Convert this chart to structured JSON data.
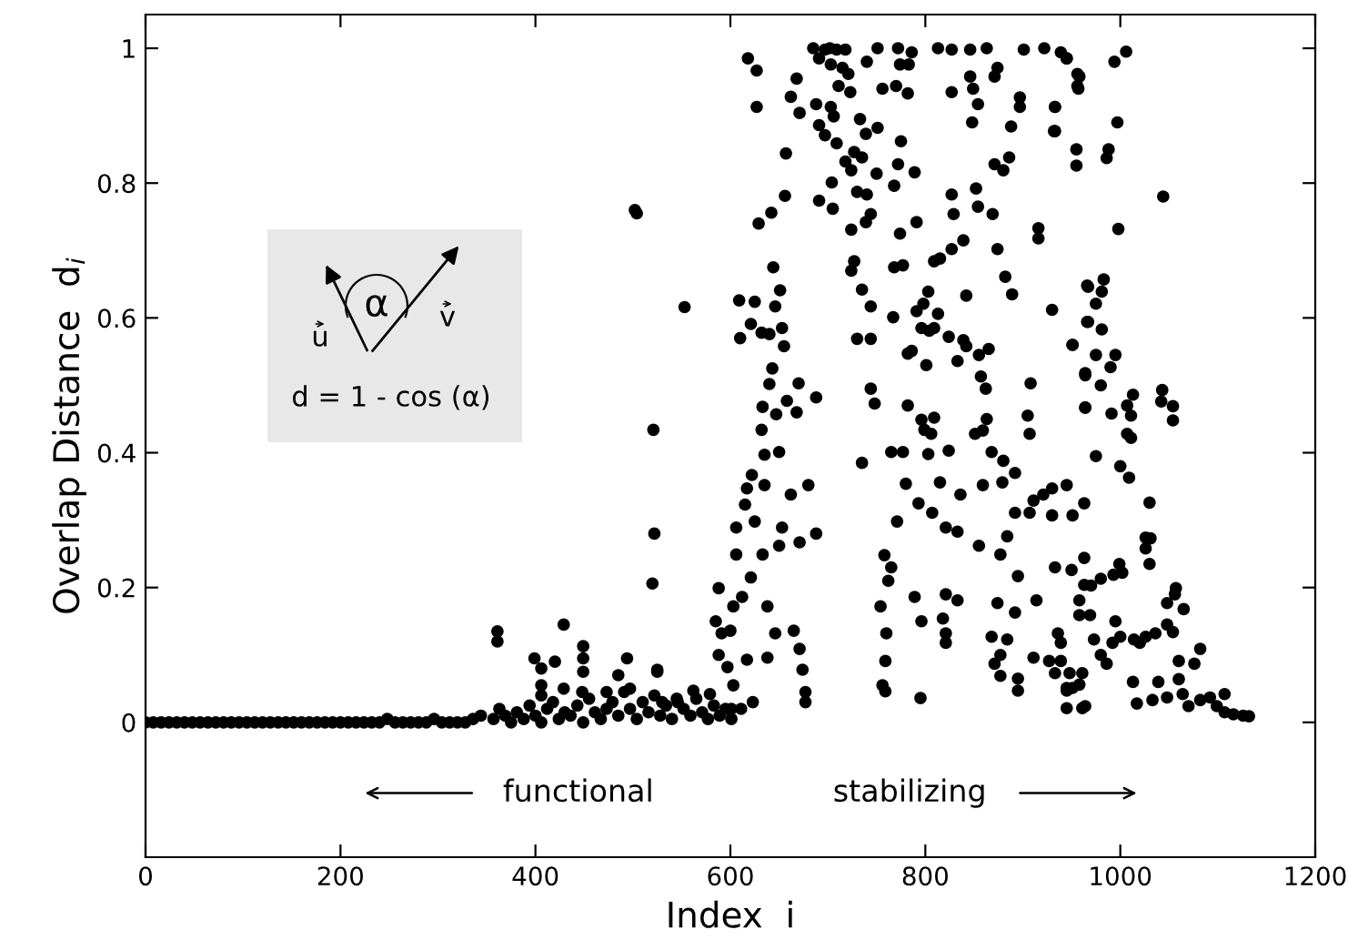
{
  "chart_data": {
    "type": "scatter",
    "xlabel": "Index  i",
    "ylabel": "Overlap Distance  d$_{i}$",
    "xlim": [
      0,
      1200
    ],
    "ylim": [
      -0.2,
      1.05
    ],
    "xticks": [
      0,
      200,
      400,
      600,
      800,
      1000,
      1200
    ],
    "yticks": [
      0,
      0.2,
      0.4,
      0.6,
      0.8,
      1
    ],
    "grid": false,
    "marker": "circle",
    "color": "#000000",
    "annotations": [
      "functional",
      "stabilizing",
      "d = 1 - cos (α)",
      "α",
      "u",
      "v"
    ],
    "x": [
      0,
      8,
      16,
      24,
      32,
      40,
      48,
      56,
      64,
      72,
      80,
      88,
      96,
      104,
      112,
      120,
      128,
      136,
      144,
      152,
      160,
      168,
      176,
      184,
      192,
      200,
      208,
      216,
      224,
      232,
      240,
      248,
      256,
      264,
      272,
      280,
      288,
      296,
      304,
      312,
      320,
      328,
      336,
      344,
      357,
      363,
      369,
      375,
      381,
      388,
      394,
      400,
      406,
      412,
      418,
      424,
      430,
      436,
      443,
      449,
      455,
      461,
      467,
      473,
      479,
      485,
      491,
      497,
      504,
      510,
      516,
      522,
      528,
      534,
      540,
      546,
      552,
      559,
      565,
      571,
      577,
      583,
      589,
      595,
      601,
      502,
      504,
      553,
      521,
      522,
      520,
      361,
      361,
      429,
      399,
      406,
      420,
      449,
      449,
      449,
      494,
      485,
      525,
      406,
      406,
      429,
      448,
      473,
      497,
      525,
      562,
      579,
      530,
      545,
      601,
      618,
      627,
      627,
      657,
      656,
      642,
      629,
      644,
      651,
      609,
      625,
      646,
      621,
      632,
      640,
      610,
      653,
      655,
      643,
      640,
      670,
      633,
      647,
      658,
      668,
      688,
      632,
      635,
      650,
      622,
      617,
      635,
      615,
      662,
      680,
      606,
      625,
      653,
      650,
      671,
      688,
      606,
      633,
      621,
      612,
      588,
      603,
      585,
      591,
      600,
      588,
      597,
      617,
      638,
      638,
      646,
      665,
      671,
      674,
      677,
      677,
      603,
      611,
      623,
      685,
      697,
      702,
      709,
      718,
      691,
      703,
      715,
      721,
      740,
      751,
      772,
      786,
      783,
      774,
      756,
      770,
      782,
      723,
      711,
      668,
      662,
      671,
      688,
      703,
      706,
      691,
      697,
      709,
      739,
      751,
      733,
      727,
      735,
      718,
      724,
      750,
      772,
      789,
      775,
      768,
      704,
      691,
      705,
      730,
      740,
      744,
      739,
      724,
      774,
      791,
      827,
      829,
      839,
      852,
      854,
      869,
      813,
      827,
      846,
      863,
      901,
      922,
      939,
      945,
      956,
      956,
      874,
      871,
      846,
      827,
      849,
      854,
      897,
      897,
      933,
      848,
      888,
      932,
      955,
      955,
      871,
      880,
      886,
      916,
      916,
      874,
      882,
      889,
      842,
      827,
      815,
      809,
      777,
      768,
      727,
      724,
      735,
      744,
      767,
      791,
      796,
      804,
      798,
      803,
      813,
      809,
      824,
      839,
      842,
      855,
      865,
      833,
      801,
      786,
      730,
      744,
      782,
      857,
      862,
      908,
      863,
      859,
      851,
      905,
      907,
      930,
      951,
      966,
      966,
      964,
      964,
      744,
      748,
      782,
      796,
      809,
      799,
      806,
      765,
      777,
      803,
      824,
      868,
      880,
      892,
      879,
      735,
      780,
      815,
      836,
      859,
      793,
      807,
      821,
      833,
      855,
      877,
      884,
      892,
      907,
      911,
      921,
      930,
      945,
      963,
      930,
      951,
      771,
      758,
      765,
      762,
      789,
      821,
      833,
      796,
      818,
      821,
      821,
      754,
      760,
      759,
      756,
      759,
      795,
      874,
      892,
      895,
      914,
      933,
      950,
      963,
      963,
      958,
      868,
      884,
      877,
      871,
      877,
      895,
      895,
      911,
      927,
      936,
      939,
      933,
      945,
      961,
      945,
      964,
      945,
      958,
      957,
      933,
      933,
      994,
      1006,
      997,
      988,
      986,
      1044,
      998,
      983,
      981,
      967,
      975,
      981,
      967,
      951,
      975,
      995,
      990,
      964,
      980,
      964,
      991,
      1007,
      1013,
      1011,
      1007,
      1011,
      1043,
      1042,
      1054,
      1054,
      975,
      1000,
      1009,
      1030,
      1026,
      1031,
      1026,
      1030,
      999,
      1002,
      993,
      980,
      970,
      958,
      969,
      1057,
      1056,
      1048,
      1065,
      1082,
      1076,
      1060,
      1060,
      1048,
      1054,
      1036,
      1026,
      1020,
      1014,
      1000,
      995,
      992,
      980,
      973,
      986,
      1013,
      1017,
      1033,
      1039,
      1048,
      1064,
      1070,
      1082,
      1092,
      1099,
      1107,
      1107,
      1116,
      1126,
      1132,
      958,
      961,
      945,
      948,
      951,
      939
    ],
    "values": [
      0,
      0,
      0,
      0,
      0,
      0,
      0,
      0,
      0,
      0,
      0,
      0,
      0,
      0,
      0,
      0,
      0,
      0,
      0,
      0,
      0,
      0,
      0,
      0,
      0,
      0,
      0,
      0,
      0,
      0,
      0,
      0.005,
      0,
      0,
      0,
      0,
      0,
      0.005,
      0,
      0,
      0,
      0,
      0.005,
      0.01,
      0.005,
      0.02,
      0.01,
      0,
      0.015,
      0.005,
      0.025,
      0.01,
      0,
      0.02,
      0.03,
      0.005,
      0.015,
      0.01,
      0.025,
      0,
      0.035,
      0.015,
      0.005,
      0.02,
      0.03,
      0.01,
      0.045,
      0.02,
      0.005,
      0.03,
      0.015,
      0.04,
      0.01,
      0.025,
      0.005,
      0.03,
      0.02,
      0.01,
      0.035,
      0.015,
      0.005,
      0.025,
      0.01,
      0.02,
      0.005,
      0.76,
      0.755,
      0.616,
      0.434,
      0.28,
      0.206,
      0.135,
      0.12,
      0.145,
      0.095,
      0.08,
      0.09,
      0.113,
      0.095,
      0.075,
      0.095,
      0.07,
      0.075,
      0.055,
      0.04,
      0.05,
      0.045,
      0.045,
      0.05,
      0.078,
      0.047,
      0.042,
      0.03,
      0.035,
      0.02,
      0.985,
      0.967,
      0.913,
      0.844,
      0.781,
      0.756,
      0.74,
      0.675,
      0.641,
      0.626,
      0.624,
      0.617,
      0.591,
      0.578,
      0.576,
      0.57,
      0.585,
      0.558,
      0.525,
      0.502,
      0.503,
      0.468,
      0.457,
      0.477,
      0.46,
      0.482,
      0.434,
      0.397,
      0.401,
      0.367,
      0.347,
      0.352,
      0.323,
      0.338,
      0.352,
      0.289,
      0.298,
      0.289,
      0.262,
      0.267,
      0.28,
      0.249,
      0.249,
      0.215,
      0.186,
      0.199,
      0.172,
      0.15,
      0.132,
      0.136,
      0.1,
      0.082,
      0.093,
      0.096,
      0.172,
      0.132,
      0.136,
      0.109,
      0.078,
      0.045,
      0.03,
      0.055,
      0.02,
      0.03,
      1.0,
      0.998,
      1.0,
      0.998,
      0.998,
      0.985,
      0.976,
      0.971,
      0.962,
      0.98,
      1.0,
      1.0,
      0.994,
      0.976,
      0.976,
      0.94,
      0.944,
      0.933,
      0.935,
      0.944,
      0.955,
      0.928,
      0.904,
      0.917,
      0.913,
      0.899,
      0.886,
      0.871,
      0.859,
      0.873,
      0.882,
      0.895,
      0.846,
      0.838,
      0.832,
      0.819,
      0.814,
      0.828,
      0.816,
      0.862,
      0.796,
      0.801,
      0.774,
      0.762,
      0.787,
      0.783,
      0.754,
      0.742,
      0.731,
      0.725,
      0.742,
      0.783,
      0.754,
      0.715,
      0.792,
      0.765,
      0.754,
      1.0,
      0.998,
      0.998,
      1.0,
      0.998,
      1.0,
      0.994,
      0.985,
      0.962,
      0.944,
      0.971,
      0.958,
      0.958,
      0.935,
      0.94,
      0.917,
      0.927,
      0.913,
      0.913,
      0.89,
      0.884,
      0.877,
      0.85,
      0.826,
      0.828,
      0.819,
      0.838,
      0.733,
      0.718,
      0.702,
      0.661,
      0.635,
      0.633,
      0.702,
      0.688,
      0.684,
      0.678,
      0.675,
      0.684,
      0.67,
      0.642,
      0.617,
      0.601,
      0.61,
      0.585,
      0.581,
      0.621,
      0.639,
      0.606,
      0.585,
      0.572,
      0.567,
      0.558,
      0.545,
      0.554,
      0.536,
      0.53,
      0.551,
      0.569,
      0.569,
      0.547,
      0.513,
      0.495,
      0.503,
      0.45,
      0.433,
      0.428,
      0.455,
      0.428,
      0.612,
      0.56,
      0.594,
      0.648,
      0.518,
      0.467,
      0.495,
      0.473,
      0.47,
      0.449,
      0.452,
      0.434,
      0.428,
      0.401,
      0.401,
      0.398,
      0.403,
      0.401,
      0.388,
      0.37,
      0.356,
      0.385,
      0.354,
      0.356,
      0.338,
      0.352,
      0.325,
      0.311,
      0.289,
      0.283,
      0.262,
      0.249,
      0.276,
      0.311,
      0.311,
      0.329,
      0.338,
      0.347,
      0.352,
      0.325,
      0.307,
      0.307,
      0.298,
      0.248,
      0.23,
      0.21,
      0.186,
      0.19,
      0.181,
      0.15,
      0.154,
      0.132,
      0.118,
      0.172,
      0.132,
      0.091,
      0.055,
      0.046,
      0.036,
      0.177,
      0.163,
      0.217,
      0.181,
      0.23,
      0.226,
      0.244,
      0.204,
      0.159,
      0.127,
      0.123,
      0.1,
      0.087,
      0.069,
      0.065,
      0.047,
      0.096,
      0.091,
      0.132,
      0.118,
      0.073,
      0.051,
      0.073,
      0.021,
      0.024,
      0.985,
      0.958,
      0.94,
      0.913,
      0.877,
      0.98,
      0.995,
      0.89,
      0.85,
      0.837,
      0.78,
      0.732,
      0.657,
      0.639,
      0.646,
      0.621,
      0.583,
      0.594,
      0.56,
      0.545,
      0.545,
      0.527,
      0.515,
      0.5,
      0.467,
      0.458,
      0.47,
      0.486,
      0.455,
      0.428,
      0.422,
      0.493,
      0.476,
      0.469,
      0.448,
      0.395,
      0.38,
      0.363,
      0.326,
      0.274,
      0.273,
      0.258,
      0.235,
      0.235,
      0.222,
      0.219,
      0.213,
      0.203,
      0.181,
      0.159,
      0.199,
      0.19,
      0.177,
      0.168,
      0.109,
      0.087,
      0.091,
      0.064,
      0.145,
      0.134,
      0.132,
      0.127,
      0.118,
      0.123,
      0.127,
      0.15,
      0.118,
      0.1,
      0.123,
      0.087,
      0.06,
      0.028,
      0.033,
      0.06,
      0.037,
      0.042,
      0.024,
      0.033,
      0.037,
      0.024,
      0.042,
      0.015,
      0.012,
      0.01,
      0.009,
      0.056,
      0.021,
      0.047,
      0.073,
      0.051,
      0.091
    ]
  }
}
